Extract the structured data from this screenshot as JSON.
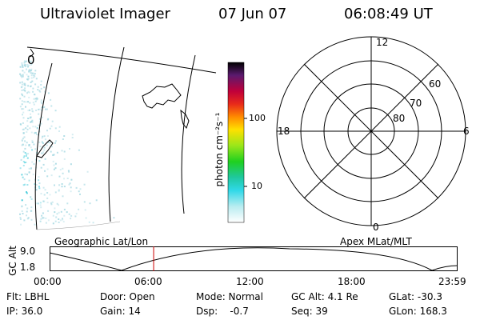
{
  "header": {
    "title": "Ultraviolet Imager",
    "date": "07 Jun 07",
    "time": "06:08:49 UT"
  },
  "geo_map": {
    "corner_label": "0",
    "caption": "Geographic Lat/Lon"
  },
  "colorbar": {
    "unit_label": "photon cm⁻²s⁻¹",
    "ticks": [
      "100",
      "10"
    ]
  },
  "polar_plot": {
    "caption": "Apex MLat/MLT",
    "mlt_labels": {
      "top": "12",
      "left": "18",
      "right": "6",
      "bottom": "0"
    },
    "mlat_labels": [
      "60",
      "70",
      "80"
    ]
  },
  "altitude_plot": {
    "ylabel": "GC Alt",
    "y_ticks": [
      "9.0",
      "1.8"
    ],
    "x_ticks": [
      "00:00",
      "06:00",
      "12:00",
      "18:00",
      "23:59"
    ],
    "current_time_fraction": 0.255
  },
  "status": {
    "rows": [
      [
        "Flt: LBHL",
        "Door: Open",
        "Mode: Normal",
        "GC Alt: 4.1 Re",
        "GLat: -30.3"
      ],
      [
        "IP: 36.0",
        "Gain: 14",
        "Dsp:    -0.7",
        "Seq: 39",
        "GLon: 168.3"
      ]
    ]
  },
  "colors": {
    "foreground": "#000000",
    "current_time_marker": "#cc0000",
    "uv_speckle": "#9fd6e0",
    "uv_bright": "#35c8d8"
  }
}
